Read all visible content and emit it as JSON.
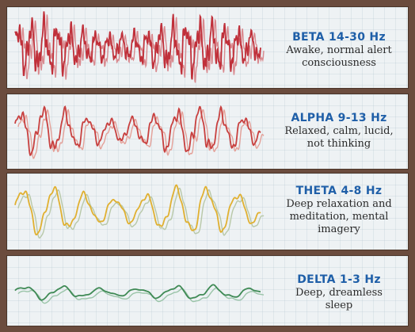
{
  "bands": [
    {
      "name": "BETA 14-30 Hz",
      "desc": [
        "Awake, normal alert",
        "consciousness"
      ],
      "color": "#c0303a",
      "shadow": "#d98a8f"
    },
    {
      "name": "ALPHA 9-13 Hz",
      "desc": [
        "Relaxed, calm, lucid,",
        "not thinking"
      ],
      "color": "#c8403f",
      "shadow": "#e4a098"
    },
    {
      "name": "THETA 4-8 Hz",
      "desc": [
        "Deep relaxation and",
        "meditation, mental",
        "imagery"
      ],
      "color": "#e0b030",
      "shadow": "#b8c8a8"
    },
    {
      "name": "DELTA 1-3 Hz",
      "desc": [
        "Deep, dreamless",
        "sleep"
      ],
      "color": "#3f8a55",
      "shadow": "#9ac4a8"
    }
  ]
}
